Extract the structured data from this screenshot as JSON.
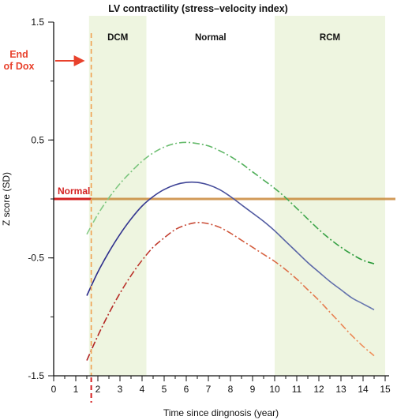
{
  "chart_data": {
    "type": "line",
    "title": "LV contractility (stress–velocity index)",
    "xlabel": "Time since dingnosis (year)",
    "ylabel": "Z score (SD)",
    "xlim": [
      0,
      15
    ],
    "ylim": [
      -1.5,
      1.5
    ],
    "x_ticks": [
      0,
      1,
      2,
      3,
      4,
      5,
      6,
      7,
      8,
      9,
      10,
      11,
      12,
      13,
      14,
      15
    ],
    "y_ticks": [
      {
        "value": 1.5,
        "label": "1.5"
      },
      {
        "value": 0.5,
        "label": "0.5"
      },
      {
        "value": -0.5,
        "label": "-0.5"
      },
      {
        "value": -1.5,
        "label": "-1.5"
      }
    ],
    "regions": [
      {
        "label": "DCM",
        "x0": 1.6,
        "x1": 4.2,
        "color": "#eef5e0"
      },
      {
        "label": "Normal",
        "x0": 4.2,
        "x1": 10,
        "color": "#ffffff"
      },
      {
        "label": "RCM",
        "x0": 10,
        "x1": 15,
        "color": "#eef5e0"
      }
    ],
    "reference_line": {
      "label": "Normal",
      "y": 0,
      "color_left": "#d42020",
      "color_mid": "#c9893a",
      "mid_x": [
        1.7,
        10
      ]
    },
    "event": {
      "label_line1": "End",
      "label_line2": "of Dox",
      "x": 1.7,
      "color": "#e8412c",
      "line_color": "#f0a050"
    },
    "series": [
      {
        "style": "solid",
        "color_start": "#2a2a8a",
        "color_end": "#6a7ab0",
        "x": [
          1.5,
          2,
          2.5,
          3,
          3.5,
          4,
          4.5,
          5,
          5.5,
          6,
          6.5,
          7,
          7.5,
          8,
          8.5,
          9,
          9.5,
          10,
          10.5,
          11,
          11.5,
          12,
          12.5,
          13,
          13.5,
          14,
          14.5
        ],
        "y": [
          -0.82,
          -0.62,
          -0.45,
          -0.3,
          -0.17,
          -0.06,
          0.02,
          0.08,
          0.12,
          0.14,
          0.14,
          0.12,
          0.08,
          0.02,
          -0.05,
          -0.12,
          -0.19,
          -0.27,
          -0.36,
          -0.45,
          -0.54,
          -0.62,
          -0.7,
          -0.77,
          -0.84,
          -0.89,
          -0.94
        ]
      },
      {
        "style": "dashdot",
        "color_start": "#88cc88",
        "color_end": "#2a9a3a",
        "x": [
          1.5,
          2,
          2.5,
          3,
          3.5,
          4,
          4.5,
          5,
          5.5,
          6,
          6.5,
          7,
          7.5,
          8,
          8.5,
          9,
          9.5,
          10,
          10.5,
          11,
          11.5,
          12,
          12.5,
          13,
          13.5,
          14,
          14.5
        ],
        "y": [
          -0.3,
          -0.13,
          0.01,
          0.13,
          0.23,
          0.32,
          0.39,
          0.44,
          0.47,
          0.48,
          0.47,
          0.45,
          0.41,
          0.36,
          0.3,
          0.23,
          0.16,
          0.09,
          0.01,
          -0.08,
          -0.17,
          -0.26,
          -0.34,
          -0.41,
          -0.47,
          -0.52,
          -0.55
        ]
      },
      {
        "style": "dashdot",
        "color_start": "#b02020",
        "color_end": "#f0905a",
        "x": [
          1.5,
          2,
          2.5,
          3,
          3.5,
          4,
          4.5,
          5,
          5.5,
          6,
          6.5,
          7,
          7.5,
          8,
          8.5,
          9,
          9.5,
          10,
          10.5,
          11,
          11.5,
          12,
          12.5,
          13,
          13.5,
          14,
          14.5
        ],
        "y": [
          -1.37,
          -1.16,
          -0.97,
          -0.8,
          -0.65,
          -0.52,
          -0.41,
          -0.33,
          -0.26,
          -0.22,
          -0.2,
          -0.21,
          -0.24,
          -0.29,
          -0.35,
          -0.41,
          -0.47,
          -0.53,
          -0.6,
          -0.68,
          -0.77,
          -0.86,
          -0.96,
          -1.06,
          -1.16,
          -1.25,
          -1.33
        ]
      }
    ],
    "grid": false,
    "legend": "none"
  }
}
